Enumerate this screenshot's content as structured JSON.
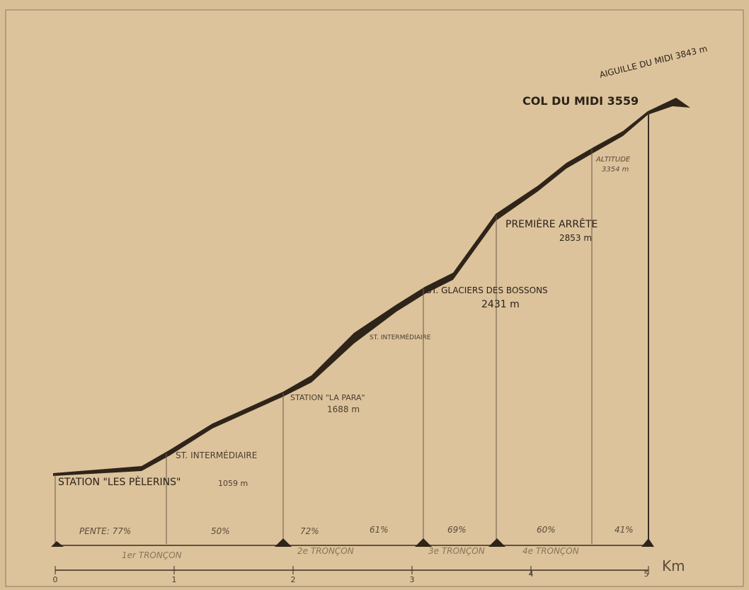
{
  "peak": "AIGUILLE DU MIDI 3843 m",
  "col": "COL DU MIDI 3559",
  "stations": [
    {
      "label": "STATION \"LES PÈLERINS\"",
      "altitude": "1059 m"
    },
    {
      "label": "ST. INTERMÉDIAIRE"
    },
    {
      "label": "STATION \"LA PARA\"",
      "altitude": "1688 m"
    },
    {
      "label": "ST. INTERMÉDIAIRE"
    },
    {
      "label": "ST. GLACIERS DES BOSSONS",
      "altitude": "2431 m"
    },
    {
      "label": "PREMIÈRE ARRÊTE",
      "altitude": "2853 m"
    },
    {
      "label": "ALTITUDE",
      "altitude": "3354 m"
    }
  ],
  "slopes": [
    "PENTE: 77%",
    "50%",
    "72%",
    "61%",
    "69%",
    "60%",
    "41%"
  ],
  "sections": [
    "1er TRONÇON",
    "2e TRONÇON",
    "3e TRONÇON",
    "4e TRONÇON"
  ],
  "distance_axis": {
    "ticks": [
      "0",
      "1",
      "2",
      "3",
      "4",
      "5"
    ],
    "unit": "Km"
  }
}
